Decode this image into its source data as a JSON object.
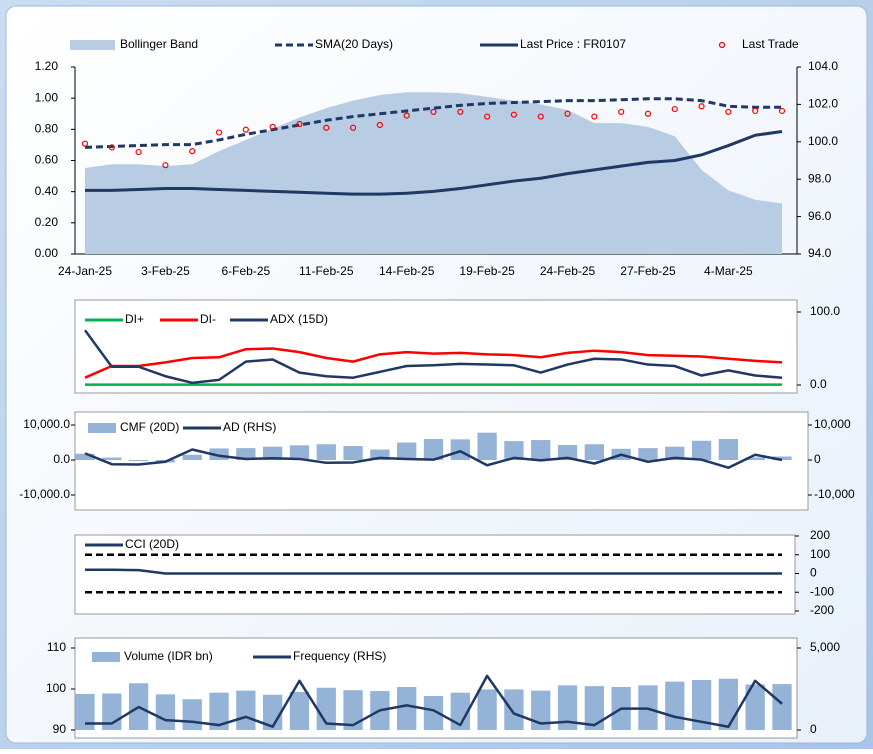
{
  "chart_data": [
    {
      "type": "combo",
      "categories": [
        "24-Jan-25",
        null,
        null,
        "3-Feb-25",
        null,
        null,
        "6-Feb-25",
        null,
        null,
        "11-Feb-25",
        null,
        null,
        "14-Feb-25",
        null,
        null,
        "19-Feb-25",
        null,
        null,
        "24-Feb-25",
        null,
        null,
        "27-Feb-25",
        null,
        null,
        "4-Mar-25",
        null,
        null
      ],
      "ylim": [
        0,
        1.2
      ],
      "yticks": [
        {
          "value": 0,
          "label": "0.00"
        },
        {
          "value": 0.2,
          "label": "0.20"
        },
        {
          "value": 0.4,
          "label": "0.40"
        },
        {
          "value": 0.6,
          "label": "0.60"
        },
        {
          "value": 0.8,
          "label": "0.80"
        },
        {
          "value": 1,
          "label": "1.00"
        },
        {
          "value": 1.2,
          "label": "1.20"
        }
      ],
      "y2lim": [
        94,
        104
      ],
      "y2ticks": [
        {
          "value": 94,
          "label": "94.0"
        },
        {
          "value": 96,
          "label": "96.0"
        },
        {
          "value": 98,
          "label": "98.0"
        },
        {
          "value": 100,
          "label": "100.0"
        },
        {
          "value": 102,
          "label": "102.0"
        },
        {
          "value": 104,
          "label": "104.0"
        }
      ],
      "series": [
        {
          "name": "Bollinger Band",
          "kind": "area",
          "axis": "y2",
          "color": "#b8cce4",
          "values": [
            98.6,
            98.8,
            98.8,
            98.7,
            98.8,
            99.5,
            100.1,
            100.7,
            101.3,
            101.8,
            102.2,
            102.5,
            102.65,
            102.65,
            102.6,
            102.4,
            102.2,
            102.0,
            101.7,
            101.0,
            101.0,
            100.8,
            100.3,
            98.5,
            97.4,
            96.9,
            96.7
          ]
        },
        {
          "name": "SMA(20 Days)",
          "kind": "line",
          "dashed": true,
          "axis": "y2",
          "color": "#1f3864",
          "values": [
            99.7,
            99.75,
            99.8,
            99.85,
            99.85,
            100.1,
            100.4,
            100.65,
            100.9,
            101.15,
            101.35,
            101.5,
            101.65,
            101.8,
            101.95,
            102.05,
            102.1,
            102.15,
            102.2,
            102.2,
            102.25,
            102.3,
            102.3,
            102.2,
            101.9,
            101.85,
            101.85
          ]
        },
        {
          "name": "Last Price : FR0107",
          "kind": "line",
          "axis": "y2",
          "color": "#1f3864",
          "values": [
            97.4,
            97.4,
            97.45,
            97.5,
            97.5,
            97.45,
            97.4,
            97.35,
            97.3,
            97.25,
            97.2,
            97.2,
            97.25,
            97.35,
            97.5,
            97.7,
            97.9,
            98.05,
            98.3,
            98.5,
            98.7,
            98.9,
            99.0,
            99.3,
            99.8,
            100.35,
            100.55
          ]
        },
        {
          "name": "Last Trade",
          "kind": "scatter",
          "axis": "y2",
          "color": "#ff0000",
          "values": [
            99.9,
            99.7,
            99.45,
            98.75,
            99.5,
            100.5,
            100.65,
            100.8,
            100.95,
            100.75,
            100.75,
            100.9,
            101.4,
            101.6,
            101.6,
            101.35,
            101.45,
            101.35,
            101.5,
            101.35,
            101.6,
            101.5,
            101.75,
            101.9,
            101.6,
            101.65,
            101.65
          ]
        }
      ]
    },
    {
      "type": "combo",
      "y2lim": [
        0,
        100
      ],
      "y2ticks": [
        {
          "value": 0,
          "label": "0.0"
        },
        {
          "value": 100,
          "label": "100.0"
        }
      ],
      "series": [
        {
          "name": "DI+",
          "kind": "line",
          "axis": "y2",
          "color": "#00b050",
          "values": [
            0.5,
            0.5,
            0.5,
            0.5,
            0.5,
            0.5,
            0.5,
            0.5,
            0.5,
            0.5,
            0.5,
            0.5,
            0.5,
            0.5,
            0.5,
            0.5,
            0.5,
            0.5,
            0.5,
            0.5,
            0.5,
            0.5,
            0.5,
            0.5,
            0.5,
            0.5,
            0.5
          ]
        },
        {
          "name": "DI-",
          "kind": "line",
          "axis": "y2",
          "color": "#ff0000",
          "values": [
            10,
            26,
            26,
            31,
            37,
            38,
            49,
            50,
            45,
            37,
            32,
            42,
            45,
            43,
            44,
            42,
            41,
            38,
            44,
            47,
            45,
            41,
            40,
            39,
            36,
            33,
            31
          ]
        },
        {
          "name": "ADX (15D)",
          "kind": "line",
          "axis": "y2",
          "color": "#1f3864",
          "values": [
            75,
            25,
            25,
            12,
            3,
            7,
            32,
            35,
            17,
            12,
            10,
            18,
            26,
            27,
            29,
            28,
            27,
            17,
            28,
            36,
            35,
            28,
            26,
            13,
            20,
            13,
            10
          ]
        }
      ]
    },
    {
      "type": "combo",
      "ylim": [
        -10000,
        10000
      ],
      "yticks": [
        {
          "value": -10000,
          "label": "-10,000.0"
        },
        {
          "value": 0,
          "label": "0.0"
        },
        {
          "value": 10000,
          "label": "10,000.0"
        }
      ],
      "y2lim": [
        -10000,
        10000
      ],
      "y2ticks": [
        {
          "value": -10000,
          "label": "-10,000"
        },
        0,
        {
          "value": 10000,
          "label": "10,000"
        }
      ],
      "series": [
        {
          "name": "CMF (20D)",
          "kind": "bar",
          "axis": "y",
          "color": "#95b3d7",
          "values": [
            1800,
            700,
            -300,
            -700,
            1500,
            3300,
            3400,
            3800,
            4200,
            4500,
            4000,
            3000,
            5000,
            6000,
            5900,
            7800,
            5400,
            5700,
            4300,
            4500,
            3200,
            3400,
            3800,
            5500,
            6000,
            700,
            1000
          ]
        },
        {
          "name": "AD (RHS)",
          "kind": "line",
          "axis": "y2",
          "color": "#1f3864",
          "values": [
            1900,
            -1200,
            -1300,
            -500,
            3000,
            1200,
            300,
            500,
            300,
            -800,
            -700,
            600,
            300,
            100,
            2500,
            -1500,
            600,
            -100,
            600,
            -1000,
            1500,
            -500,
            600,
            100,
            -2200,
            1500,
            0
          ]
        }
      ]
    },
    {
      "type": "combo",
      "y2lim": [
        -200,
        200
      ],
      "y2ticks": [
        200,
        100,
        0,
        -100,
        -200
      ],
      "reference_lines": [
        100,
        -100
      ],
      "series": [
        {
          "name": "CCI (20D)",
          "kind": "line",
          "axis": "y2",
          "color": "#1f3864",
          "values": [
            20,
            20,
            18,
            0,
            0,
            0,
            0,
            0,
            0,
            0,
            0,
            0,
            0,
            0,
            0,
            0,
            0,
            0,
            0,
            0,
            0,
            0,
            0,
            0,
            0,
            0,
            0
          ]
        }
      ]
    },
    {
      "type": "combo",
      "ylim": [
        90,
        110
      ],
      "yticks": [
        90,
        100,
        110
      ],
      "y2lim": [
        0,
        5000
      ],
      "y2ticks": [
        0,
        {
          "value": 5000,
          "label": "5,000"
        }
      ],
      "series": [
        {
          "name": "Volume (IDR bn)",
          "kind": "bar",
          "axis": "y",
          "color": "#95b3d7",
          "values": [
            98.8,
            98.9,
            101.4,
            98.7,
            97.5,
            99.1,
            99.6,
            98.6,
            99.3,
            100.3,
            99.7,
            99.5,
            100.5,
            98.3,
            99.1,
            99.9,
            99.9,
            99.6,
            100.9,
            100.7,
            100.5,
            100.9,
            101.8,
            102.2,
            102.5,
            101.1,
            101.2
          ]
        },
        {
          "name": "Frequency (RHS)",
          "kind": "line",
          "axis": "y2",
          "color": "#1f3864",
          "values": [
            400,
            400,
            1400,
            600,
            500,
            300,
            800,
            200,
            3000,
            400,
            300,
            1200,
            1500,
            1200,
            300,
            3300,
            1000,
            400,
            500,
            300,
            1300,
            1300,
            800,
            500,
            200,
            3000,
            1600
          ]
        }
      ]
    }
  ]
}
